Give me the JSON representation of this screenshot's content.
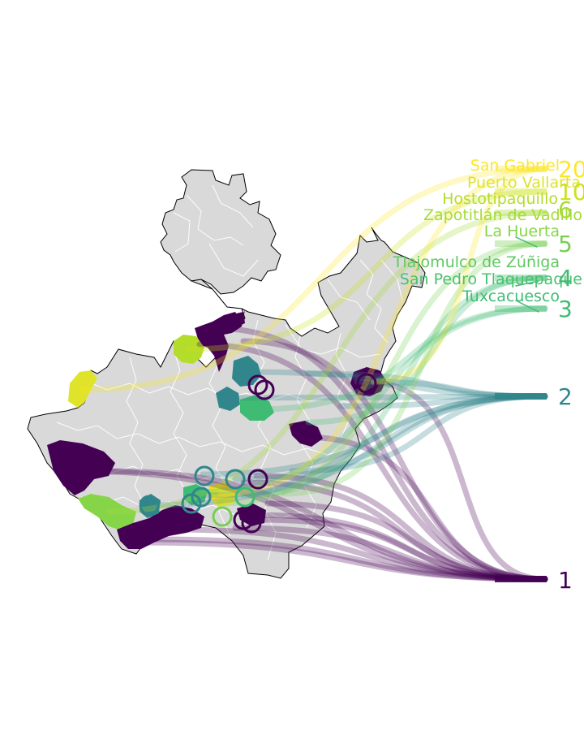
{
  "map": {
    "region": "Jalisco",
    "colors": {
      "background": "#ffffff",
      "state_fill": "#d9d9d9",
      "outer_border": "#000000",
      "municipal_border": "#ffffff",
      "level_1": "#440154",
      "level_2": "#31868c",
      "level_3": "#3fbc73",
      "level_4": "#3fbc73",
      "level_5": "#77cf52",
      "level_6": "#a5db36",
      "level_10": "#cde11d",
      "level_20": "#fde725"
    }
  },
  "scale_labels": [
    {
      "key": "l20",
      "text": "20"
    },
    {
      "key": "l10",
      "text": "10"
    },
    {
      "key": "l6",
      "text": "6"
    },
    {
      "key": "l5",
      "text": "5"
    },
    {
      "key": "l4",
      "text": "4"
    },
    {
      "key": "l3",
      "text": "3"
    },
    {
      "key": "l2",
      "text": "2"
    },
    {
      "key": "l1",
      "text": "1"
    }
  ],
  "place_labels": [
    {
      "key": "san_gabriel",
      "text": "San Gabriel"
    },
    {
      "key": "puerto_vallarta",
      "text": "Puerto Vallarta"
    },
    {
      "key": "hostotipaquillo",
      "text": "Hostotipaquillo"
    },
    {
      "key": "zapotitlan",
      "text": "Zapotitlán de Vadillo"
    },
    {
      "key": "la_huerta",
      "text": "La Huerta"
    },
    {
      "key": "tlajomulco",
      "text": "Tlajomulco de Zúñiga"
    },
    {
      "key": "san_pedro",
      "text": "San Pedro Tlaquepaque"
    },
    {
      "key": "tuxcacuesco",
      "text": "Tuxcacuesco"
    }
  ]
}
